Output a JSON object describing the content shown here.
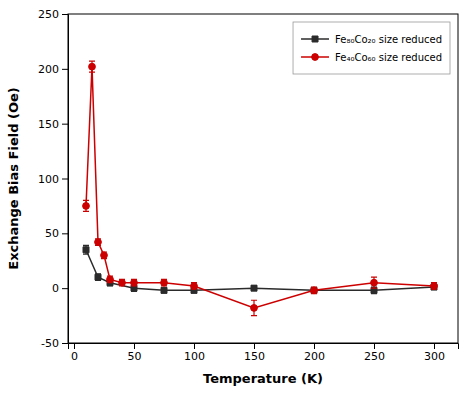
{
  "chart_data": {
    "type": "line",
    "x_label": "Temperature (K)",
    "y_label": "Exchange Bias Field  (Oe)",
    "xlim": [
      -5,
      320
    ],
    "ylim": [
      -50,
      250
    ],
    "xticks": [
      0,
      50,
      100,
      150,
      200,
      250,
      300
    ],
    "yticks": [
      -50,
      0,
      50,
      100,
      150,
      200,
      250
    ],
    "grid": false,
    "legend": "upper right",
    "series": [
      {
        "name": "Fe₈₀Co₂₀ size reduced",
        "color": "#2b2b2b",
        "marker": "square",
        "x": [
          10,
          20,
          30,
          50,
          75,
          100,
          150,
          200,
          250,
          300
        ],
        "values": [
          35,
          10,
          5,
          0,
          -2,
          -2,
          0,
          -2,
          -2,
          1
        ],
        "yerr": [
          4,
          3,
          3,
          3,
          2,
          2,
          2,
          2,
          3,
          2
        ]
      },
      {
        "name": "Fe₄₀Co₆₀ size reduced",
        "color": "#cc0000",
        "marker": "circle",
        "x": [
          10,
          15,
          20,
          25,
          30,
          40,
          50,
          75,
          100,
          150,
          200,
          250,
          300
        ],
        "values": [
          75,
          202,
          42,
          30,
          8,
          5,
          5,
          5,
          2,
          -18,
          -2,
          5,
          2
        ],
        "yerr": [
          5,
          5,
          3,
          3,
          3,
          3,
          3,
          3,
          3,
          7,
          3,
          5,
          3
        ]
      }
    ]
  }
}
